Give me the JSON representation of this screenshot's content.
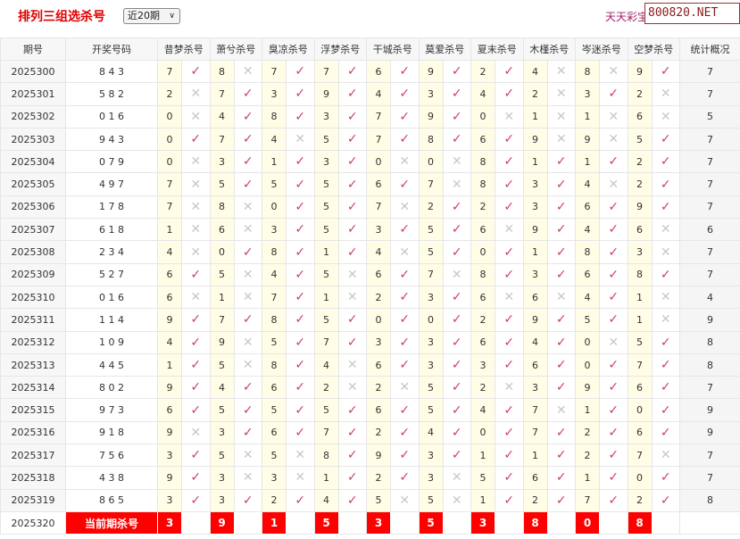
{
  "header": {
    "title": "排列三组选杀号",
    "period_select": "近20期",
    "slogan": "天天彩宝贝，",
    "watermark": "800820.NET"
  },
  "columns": {
    "period": "期号",
    "draw": "开奖号码",
    "experts": [
      "昔梦杀号",
      "萧兮杀号",
      "臭凉杀号",
      "浮梦杀号",
      "干城杀号",
      "莫爱杀号",
      "夏末杀号",
      "木槿杀号",
      "岑迷杀号",
      "空梦杀号"
    ],
    "stats": "统计概况"
  },
  "marks": {
    "hit": "✓",
    "miss": "✕"
  },
  "rows": [
    {
      "period": "2025300",
      "draw": "8 4 3",
      "kills": [
        7,
        8,
        7,
        7,
        6,
        9,
        2,
        4,
        8,
        9
      ],
      "stat": "7"
    },
    {
      "period": "2025301",
      "draw": "5 8 2",
      "kills": [
        2,
        7,
        3,
        9,
        4,
        3,
        4,
        2,
        3,
        2
      ],
      "stat": "7"
    },
    {
      "period": "2025302",
      "draw": "0 1 6",
      "kills": [
        0,
        4,
        8,
        3,
        7,
        9,
        0,
        1,
        1,
        6
      ],
      "stat": "5"
    },
    {
      "period": "2025303",
      "draw": "9 4 3",
      "kills": [
        0,
        7,
        4,
        5,
        7,
        8,
        6,
        9,
        9,
        5
      ],
      "stat": "7"
    },
    {
      "period": "2025304",
      "draw": "0 7 9",
      "kills": [
        0,
        3,
        1,
        3,
        0,
        0,
        8,
        1,
        1,
        2
      ],
      "stat": "7"
    },
    {
      "period": "2025305",
      "draw": "4 9 7",
      "kills": [
        7,
        5,
        5,
        5,
        6,
        7,
        8,
        3,
        4,
        2
      ],
      "stat": "7"
    },
    {
      "period": "2025306",
      "draw": "1 7 8",
      "kills": [
        7,
        8,
        0,
        5,
        7,
        2,
        2,
        3,
        6,
        9
      ],
      "stat": "7"
    },
    {
      "period": "2025307",
      "draw": "6 1 8",
      "kills": [
        1,
        6,
        3,
        5,
        3,
        5,
        6,
        9,
        4,
        6
      ],
      "stat": "6"
    },
    {
      "period": "2025308",
      "draw": "2 3 4",
      "kills": [
        4,
        0,
        8,
        1,
        4,
        5,
        0,
        1,
        8,
        3
      ],
      "stat": "7"
    },
    {
      "period": "2025309",
      "draw": "5 2 7",
      "kills": [
        6,
        5,
        4,
        5,
        6,
        7,
        8,
        3,
        6,
        8
      ],
      "stat": "7"
    },
    {
      "period": "2025310",
      "draw": "0 1 6",
      "kills": [
        6,
        1,
        7,
        1,
        2,
        3,
        6,
        6,
        4,
        1
      ],
      "stat": "4"
    },
    {
      "period": "2025311",
      "draw": "1 1 4",
      "kills": [
        9,
        7,
        8,
        5,
        0,
        0,
        2,
        9,
        5,
        1
      ],
      "stat": "9"
    },
    {
      "period": "2025312",
      "draw": "1 0 9",
      "kills": [
        4,
        9,
        5,
        7,
        3,
        3,
        6,
        4,
        0,
        5
      ],
      "stat": "8"
    },
    {
      "period": "2025313",
      "draw": "4 4 5",
      "kills": [
        1,
        5,
        8,
        4,
        6,
        3,
        3,
        6,
        0,
        7
      ],
      "stat": "8"
    },
    {
      "period": "2025314",
      "draw": "8 0 2",
      "kills": [
        9,
        4,
        6,
        2,
        2,
        5,
        2,
        3,
        9,
        6
      ],
      "stat": "7"
    },
    {
      "period": "2025315",
      "draw": "9 7 3",
      "kills": [
        6,
        5,
        5,
        5,
        6,
        5,
        4,
        7,
        1,
        0
      ],
      "stat": "9"
    },
    {
      "period": "2025316",
      "draw": "9 1 8",
      "kills": [
        9,
        3,
        6,
        7,
        2,
        4,
        0,
        7,
        2,
        6
      ],
      "stat": "9"
    },
    {
      "period": "2025317",
      "draw": "7 5 6",
      "kills": [
        3,
        5,
        5,
        8,
        9,
        3,
        1,
        1,
        2,
        7
      ],
      "stat": "7"
    },
    {
      "period": "2025318",
      "draw": "4 3 8",
      "kills": [
        9,
        3,
        3,
        1,
        2,
        3,
        5,
        6,
        1,
        0
      ],
      "stat": "7"
    },
    {
      "period": "2025319",
      "draw": "8 6 5",
      "kills": [
        3,
        3,
        2,
        4,
        5,
        5,
        1,
        2,
        7,
        2
      ],
      "stat": "8"
    }
  ],
  "current": {
    "period": "2025320",
    "label": "当前期杀号",
    "kills": [
      "3",
      "9",
      "1",
      "5",
      "3",
      "5",
      "3",
      "8",
      "0",
      "8"
    ]
  }
}
